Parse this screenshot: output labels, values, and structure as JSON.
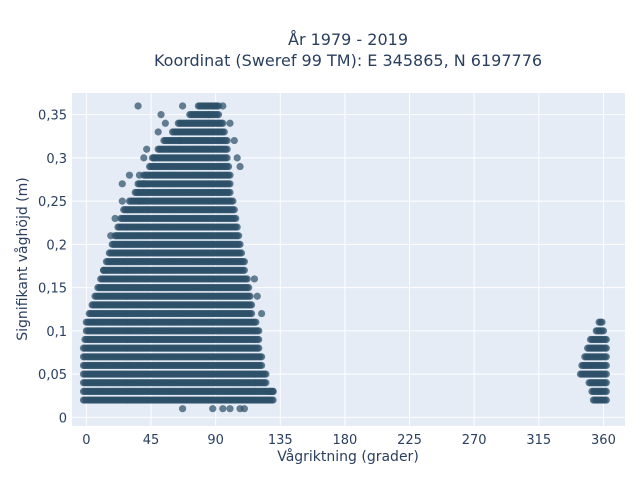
{
  "chart_data": {
    "type": "scatter",
    "title_line1": "År 1979 - 2019",
    "title_line2": "Koordinat (Sweref 99 TM): E 345865, N 6197776",
    "xlabel": "Vågriktning (grader)",
    "ylabel": "Signifikant våghöjd (m)",
    "xlim": [
      -10,
      375
    ],
    "ylim": [
      -0.01,
      0.375
    ],
    "x_ticks": [
      0,
      45,
      90,
      135,
      180,
      225,
      270,
      315,
      360
    ],
    "x_tick_labels": [
      "0",
      "45",
      "90",
      "135",
      "180",
      "225",
      "270",
      "315",
      "360"
    ],
    "y_ticks": [
      0,
      0.05,
      0.1,
      0.15,
      0.2,
      0.25,
      0.3,
      0.35
    ],
    "y_tick_labels": [
      "0",
      "0,05",
      "0,1",
      "0,15",
      "0,2",
      "0,25",
      "0,3",
      "0,35"
    ],
    "grid": true,
    "y_step": 0.01,
    "point_color": "#2e5069",
    "background_color": "#e5ecf6",
    "series": [
      {
        "x_step": 1,
        "cluster_rows": [
          [
            0.02,
            -2,
            130
          ],
          [
            0.03,
            -2,
            130
          ],
          [
            0.04,
            -2,
            125
          ],
          [
            0.05,
            -2,
            125
          ],
          [
            0.06,
            -2,
            122
          ],
          [
            0.07,
            -2,
            122
          ],
          [
            0.08,
            -2,
            120
          ],
          [
            0.09,
            -1,
            120
          ],
          [
            0.1,
            0,
            120
          ],
          [
            0.11,
            0,
            118
          ],
          [
            0.12,
            2,
            115
          ],
          [
            0.13,
            4,
            115
          ],
          [
            0.14,
            6,
            114
          ],
          [
            0.15,
            8,
            113
          ],
          [
            0.16,
            10,
            112
          ],
          [
            0.17,
            12,
            110
          ],
          [
            0.18,
            14,
            110
          ],
          [
            0.19,
            16,
            108
          ],
          [
            0.2,
            18,
            107
          ],
          [
            0.21,
            20,
            106
          ],
          [
            0.22,
            22,
            105
          ],
          [
            0.23,
            24,
            104
          ],
          [
            0.24,
            26,
            103
          ],
          [
            0.25,
            30,
            102
          ],
          [
            0.26,
            34,
            100
          ],
          [
            0.27,
            36,
            100
          ],
          [
            0.28,
            40,
            100
          ],
          [
            0.29,
            44,
            99
          ],
          [
            0.3,
            46,
            98
          ],
          [
            0.31,
            50,
            98
          ],
          [
            0.32,
            54,
            98
          ],
          [
            0.33,
            60,
            96
          ],
          [
            0.34,
            64,
            95
          ],
          [
            0.35,
            72,
            92
          ],
          [
            0.36,
            78,
            92
          ]
        ]
      },
      {
        "x_step": 1,
        "cluster_rows": [
          [
            0.02,
            353,
            362
          ],
          [
            0.03,
            352,
            362
          ],
          [
            0.04,
            350,
            362
          ],
          [
            0.05,
            344,
            362
          ],
          [
            0.06,
            345,
            362
          ],
          [
            0.07,
            347,
            362
          ],
          [
            0.08,
            349,
            362
          ],
          [
            0.09,
            351,
            362
          ],
          [
            0.1,
            355,
            360
          ],
          [
            0.11,
            357,
            359
          ]
        ]
      }
    ],
    "outliers": [
      [
        67,
        0.36
      ],
      [
        130,
        0.03
      ],
      [
        128,
        0.03
      ],
      [
        65,
        0.32
      ],
      [
        50,
        0.33
      ],
      [
        55,
        0.34
      ],
      [
        52,
        0.35
      ],
      [
        25,
        0.27
      ],
      [
        20,
        0.23
      ],
      [
        17,
        0.21
      ],
      [
        12,
        0.17
      ],
      [
        25,
        0.25
      ],
      [
        30,
        0.28
      ],
      [
        37,
        0.28
      ],
      [
        40,
        0.3
      ],
      [
        42,
        0.31
      ],
      [
        36,
        0.36
      ],
      [
        40,
        0.27
      ],
      [
        37,
        0.25
      ],
      [
        47,
        0.3
      ],
      [
        67,
        0.01
      ],
      [
        88,
        0.01
      ],
      [
        100,
        0.01
      ],
      [
        110,
        0.01
      ],
      [
        95,
        0.01
      ],
      [
        107,
        0.01
      ],
      [
        85,
        0.35
      ],
      [
        90,
        0.36
      ],
      [
        95,
        0.36
      ],
      [
        100,
        0.34
      ],
      [
        103,
        0.32
      ],
      [
        105,
        0.3
      ],
      [
        107,
        0.29
      ],
      [
        117,
        0.16
      ],
      [
        119,
        0.14
      ],
      [
        122,
        0.12
      ]
    ]
  }
}
